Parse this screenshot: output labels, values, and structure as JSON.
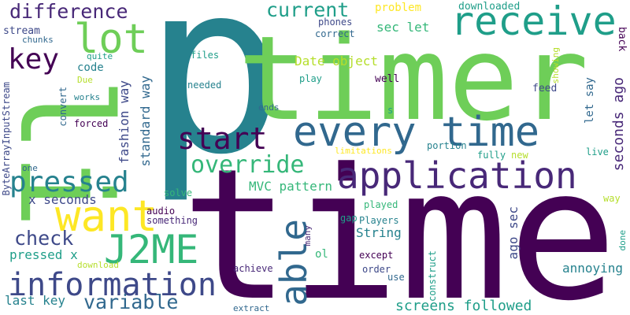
{
  "palette": {
    "dark_purple": "#440154",
    "purple": "#482878",
    "indigo": "#3e4989",
    "blue": "#31688e",
    "teal_blue": "#26828e",
    "teal": "#1f9e89",
    "green": "#35b779",
    "light_green": "#6ece58",
    "lime": "#b5de2b",
    "yellow": "#fde725",
    "background": "#ffffff"
  },
  "words": [
    {
      "key": "p",
      "text": "p"
    },
    {
      "key": "timer",
      "text": "timer"
    },
    {
      "key": "li",
      "text": "li"
    },
    {
      "key": "time",
      "text": "time"
    },
    {
      "key": "every-time",
      "text": "every time"
    },
    {
      "key": "application",
      "text": "application"
    },
    {
      "key": "receive",
      "text": "receive"
    },
    {
      "key": "lot",
      "text": "lot"
    },
    {
      "key": "want",
      "text": "want"
    },
    {
      "key": "j2me",
      "text": "J2ME"
    },
    {
      "key": "information",
      "text": "information"
    },
    {
      "key": "able",
      "text": "able"
    },
    {
      "key": "pressed",
      "text": "pressed"
    },
    {
      "key": "start",
      "text": "start"
    },
    {
      "key": "override",
      "text": "override"
    },
    {
      "key": "key",
      "text": "key"
    },
    {
      "key": "difference",
      "text": "difference"
    },
    {
      "key": "current",
      "text": "current"
    },
    {
      "key": "check",
      "text": "check"
    },
    {
      "key": "variable",
      "text": "variable"
    },
    {
      "key": "last-key",
      "text": "last key"
    },
    {
      "key": "screens-followed",
      "text": "screens followed"
    },
    {
      "key": "mvc-pattern",
      "text": "MVC pattern"
    },
    {
      "key": "string",
      "text": "String"
    },
    {
      "key": "x-seconds",
      "text": "x seconds"
    },
    {
      "key": "pressed-x",
      "text": "pressed x"
    },
    {
      "key": "fashion-way",
      "text": "fashion way"
    },
    {
      "key": "standard-way",
      "text": "standard way"
    },
    {
      "key": "seconds-ago",
      "text": "seconds ago"
    },
    {
      "key": "ago-sec",
      "text": "ago sec"
    },
    {
      "key": "let-say",
      "text": "let say"
    },
    {
      "key": "sec-let",
      "text": "sec let"
    },
    {
      "key": "date-object",
      "text": "Date object"
    },
    {
      "key": "annoying",
      "text": "annoying"
    },
    {
      "key": "problem",
      "text": "problem"
    },
    {
      "key": "downloaded",
      "text": "downloaded"
    },
    {
      "key": "back",
      "text": "back"
    },
    {
      "key": "stream",
      "text": "stream"
    },
    {
      "key": "chunks",
      "text": "chunks"
    },
    {
      "key": "code",
      "text": "code"
    },
    {
      "key": "quite",
      "text": "quite"
    },
    {
      "key": "due",
      "text": "Due"
    },
    {
      "key": "works",
      "text": "works"
    },
    {
      "key": "convert",
      "text": "convert"
    },
    {
      "key": "forced",
      "text": "forced"
    },
    {
      "key": "bytearrayinputstream",
      "text": "ByteArrayInputStream"
    },
    {
      "key": "one",
      "text": "one"
    },
    {
      "key": "phones",
      "text": "phones"
    },
    {
      "key": "correct",
      "text": "correct"
    },
    {
      "key": "files",
      "text": "files"
    },
    {
      "key": "needed",
      "text": "needed"
    },
    {
      "key": "play",
      "text": "play"
    },
    {
      "key": "well",
      "text": "well"
    },
    {
      "key": "showing",
      "text": "showing"
    },
    {
      "key": "feed",
      "text": "feed"
    },
    {
      "key": "ends",
      "text": "ends"
    },
    {
      "key": "s",
      "text": "s"
    },
    {
      "key": "limitations",
      "text": "limitations"
    },
    {
      "key": "portion",
      "text": "portion"
    },
    {
      "key": "fully",
      "text": "fully"
    },
    {
      "key": "live",
      "text": "live"
    },
    {
      "key": "new",
      "text": "new"
    },
    {
      "key": "solve",
      "text": "solve"
    },
    {
      "key": "way",
      "text": "way"
    },
    {
      "key": "audio",
      "text": "audio"
    },
    {
      "key": "something",
      "text": "something"
    },
    {
      "key": "gap",
      "text": "gap"
    },
    {
      "key": "played",
      "text": "played"
    },
    {
      "key": "players",
      "text": "Players"
    },
    {
      "key": "many",
      "text": "many"
    },
    {
      "key": "ol",
      "text": "ol"
    },
    {
      "key": "except",
      "text": "except"
    },
    {
      "key": "order",
      "text": "order"
    },
    {
      "key": "use",
      "text": "use"
    },
    {
      "key": "construct",
      "text": "construct"
    },
    {
      "key": "achieve",
      "text": "achieve"
    },
    {
      "key": "download",
      "text": "download"
    },
    {
      "key": "extract",
      "text": "extract"
    },
    {
      "key": "done",
      "text": "done"
    }
  ]
}
